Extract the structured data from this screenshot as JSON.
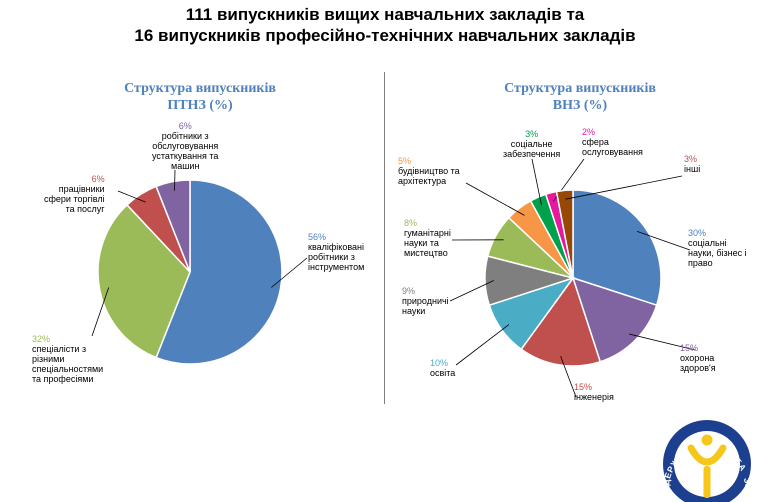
{
  "title": {
    "line1": "111 випускників вищих навчальних закладів та",
    "line2": "16 випускників професійно-технічних навчальних закладів"
  },
  "logo_text": {
    "top": "СЛУЖБА",
    "right": "ЗАЙНЯТОСТІ",
    "left": "ДЕРЖАВНА"
  },
  "chart_data": [
    {
      "type": "pie",
      "title_line1": "Структура випускників",
      "title_line2": "ПТНЗ (%)",
      "slices": [
        {
          "value": 56,
          "pct_label": "56%",
          "label_lines": [
            "кваліфіковані",
            "робітники з",
            "інструментом"
          ],
          "color": "#4f81bd",
          "label_color": "#4f81bd"
        },
        {
          "value": 32,
          "pct_label": "32%",
          "label_lines": [
            "спеціалісти  з",
            "різними",
            "спеціальностями",
            "та професіями"
          ],
          "color": "#9bbb59",
          "label_color": "#9bbb59"
        },
        {
          "value": 6,
          "pct_label": "6%",
          "label_lines": [
            "працівники",
            "сфери торгівлі",
            "та послуг"
          ],
          "color": "#c0504d",
          "label_color": "#c0504d"
        },
        {
          "value": 6,
          "pct_label": "6%",
          "label_lines": [
            "робітники з",
            "обслуговування",
            "устаткування та",
            "машин"
          ],
          "color": "#8064a2",
          "label_color": "#8064a2"
        }
      ]
    },
    {
      "type": "pie",
      "title_line1": "Структура випускників",
      "title_line2": "ВНЗ (%)",
      "slices": [
        {
          "value": 30,
          "pct_label": "30%",
          "label_lines": [
            "соціальні",
            "науки, бізнес і",
            "право"
          ],
          "color": "#4f81bd",
          "label_color": "#4f81bd"
        },
        {
          "value": 15,
          "pct_label": "15%",
          "label_lines": [
            "охорона",
            "здоров'я"
          ],
          "color": "#8064a2",
          "label_color": "#8064a2"
        },
        {
          "value": 15,
          "pct_label": "15%",
          "label_lines": [
            "інженерія"
          ],
          "color": "#c0504d",
          "label_color": "#c0504d"
        },
        {
          "value": 10,
          "pct_label": "10%",
          "label_lines": [
            "освіта"
          ],
          "color": "#4bacc6",
          "label_color": "#4bacc6"
        },
        {
          "value": 9,
          "pct_label": "9%",
          "label_lines": [
            "природничі",
            "науки"
          ],
          "color": "#7f7f7f",
          "label_color": "#7f7f7f"
        },
        {
          "value": 8,
          "pct_label": "8%",
          "label_lines": [
            "гуманітарні",
            "науки та",
            "мистецтво"
          ],
          "color": "#9bbb59",
          "label_color": "#9bbb59"
        },
        {
          "value": 5,
          "pct_label": "5%",
          "label_lines": [
            "будівництво та",
            "архітектура"
          ],
          "color": "#f79646",
          "label_color": "#f79646"
        },
        {
          "value": 3,
          "pct_label": "3%",
          "label_lines": [
            "соціальне",
            "забезпечення"
          ],
          "color": "#00a14b",
          "label_color": "#00a14b"
        },
        {
          "value": 2,
          "pct_label": "2%",
          "label_lines": [
            "сфера",
            "ослуговування"
          ],
          "color": "#e6189e",
          "label_color": "#e6189e"
        },
        {
          "value": 3,
          "pct_label": "3%",
          "label_lines": [
            "інші"
          ],
          "color": "#974806",
          "label_color": "#c0504d"
        }
      ]
    }
  ]
}
